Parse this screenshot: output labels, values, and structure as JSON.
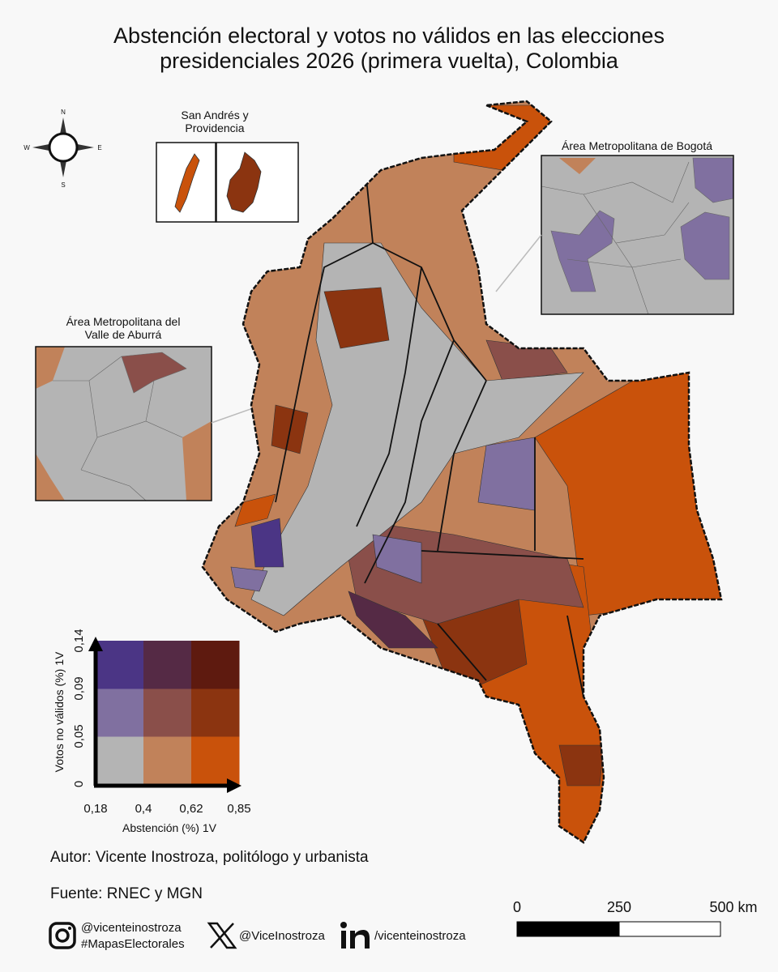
{
  "title_lines": [
    "Abstención electoral y votos no válidos en las elecciones",
    "presidenciales 2026 (primera vuelta), Colombia"
  ],
  "compass": {
    "north": "N",
    "south": "S",
    "east": "E",
    "west": "W"
  },
  "insets": {
    "san_andres": [
      "San Andrés y",
      "Providencia"
    ],
    "bogota": "Área Metropolitana de Bogotá",
    "aburra": [
      "Área Metropolitana del",
      "Valle de Aburrá"
    ]
  },
  "legend": {
    "x_label": "Abstención (%) 1V",
    "y_label": "Votos no válidos (%) 1V",
    "x_ticks": [
      "0,18",
      "0,4",
      "0,62",
      "0,85"
    ],
    "y_ticks": [
      "0",
      "0,05",
      "0,09",
      "0,14"
    ],
    "colors": [
      [
        "#b4b4b4",
        "#c1825a",
        "#c9520b"
      ],
      [
        "#8070a0",
        "#8a4f4a",
        "#8b3410"
      ],
      [
        "#4b3585",
        "#552a45",
        "#5e1a0f"
      ]
    ]
  },
  "credits": {
    "author": "Autor: Vicente Inostroza,  politólogo y urbanista",
    "source": "Fuente: RNEC y MGN"
  },
  "social": {
    "instagram": "@vicenteinostroza",
    "hashtag": "#MapasElectorales",
    "x": "@ViceInostroza",
    "linkedin": "/vicenteinostroza"
  },
  "scale_bar": [
    "0",
    "250",
    "500 km"
  ]
}
